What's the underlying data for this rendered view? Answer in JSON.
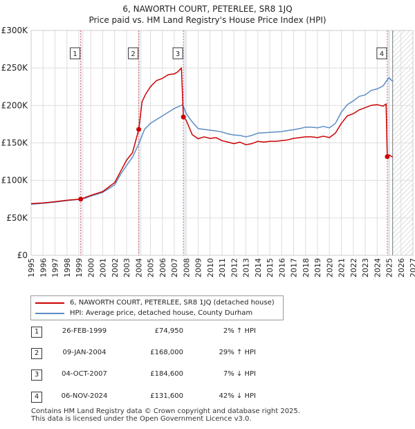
{
  "header": {
    "title": "6, NAWORTH COURT, PETERLEE, SR8 1JQ",
    "subtitle": "Price paid vs. HM Land Registry's House Price Index (HPI)"
  },
  "legend": {
    "property_label": "6, NAWORTH COURT, PETERLEE, SR8 1JQ (detached house)",
    "hpi_label": "HPI: Average price, detached house, County Durham"
  },
  "sales": [
    {
      "num": "1",
      "date": "26-FEB-1999",
      "price": "£74,950",
      "hpi": "2% ↑ HPI"
    },
    {
      "num": "2",
      "date": "09-JAN-2004",
      "price": "£168,000",
      "hpi": "29% ↑ HPI"
    },
    {
      "num": "3",
      "date": "04-OCT-2007",
      "price": "£184,600",
      "hpi": "7% ↓ HPI"
    },
    {
      "num": "4",
      "date": "06-NOV-2024",
      "price": "£131,600",
      "hpi": "42% ↓ HPI"
    }
  ],
  "footer": {
    "line1": "Contains HM Land Registry data © Crown copyright and database right 2025.",
    "line2": "This data is licensed under the Open Government Licence v3.0."
  },
  "colors": {
    "property": "#cc0000",
    "hpi": "#5b8cc4",
    "grid": "#dddddd",
    "sale_band": "#e8eef8"
  },
  "chart_data": {
    "type": "line",
    "title": "6, NAWORTH COURT, PETERLEE, SR8 1JQ",
    "subtitle": "Price paid vs. HM Land Registry's House Price Index (HPI)",
    "xlabel": "",
    "ylabel": "",
    "xlim": [
      1995,
      2027
    ],
    "ylim": [
      0,
      300000
    ],
    "grid": true,
    "legend_position": "bottom",
    "x_ticks": [
      "1995",
      "1996",
      "1997",
      "1998",
      "1999",
      "2000",
      "2001",
      "2002",
      "2003",
      "2004",
      "2005",
      "2006",
      "2007",
      "2008",
      "2009",
      "2010",
      "2011",
      "2012",
      "2013",
      "2014",
      "2015",
      "2016",
      "2017",
      "2018",
      "2019",
      "2020",
      "2021",
      "2022",
      "2023",
      "2024",
      "2025",
      "2026",
      "2027"
    ],
    "y_ticks": [
      {
        "value": 0,
        "label": "£0"
      },
      {
        "value": 50000,
        "label": "£50K"
      },
      {
        "value": 100000,
        "label": "£100K"
      },
      {
        "value": 150000,
        "label": "£150K"
      },
      {
        "value": 200000,
        "label": "£200K"
      },
      {
        "value": 250000,
        "label": "£250K"
      },
      {
        "value": 300000,
        "label": "£300K"
      }
    ],
    "data_end": 2025.3,
    "series": [
      {
        "name": "HPI: Average price, detached house, County Durham",
        "x": [
          1995,
          1996,
          1997,
          1998,
          1999,
          1999.5,
          2000,
          2001,
          2002,
          2002.5,
          2003,
          2003.5,
          2004,
          2004.5,
          2005,
          2005.5,
          2006,
          2006.5,
          2007,
          2007.3,
          2007.7,
          2008,
          2008.5,
          2009,
          2009.5,
          2010,
          2010.5,
          2011,
          2011.5,
          2012,
          2012.5,
          2013,
          2013.5,
          2014,
          2014.5,
          2015,
          2015.5,
          2016,
          2016.5,
          2017,
          2017.5,
          2018,
          2018.5,
          2019,
          2019.5,
          2020,
          2020.5,
          2021,
          2021.5,
          2022,
          2022.5,
          2023,
          2023.5,
          2024,
          2024.5,
          2024.8,
          2025,
          2025.3
        ],
        "values": [
          68000,
          69500,
          71000,
          73000,
          74500,
          76000,
          79000,
          84000,
          94000,
          108000,
          120000,
          131000,
          148000,
          168000,
          176000,
          181000,
          186000,
          191000,
          196000,
          198000,
          201000,
          189000,
          178000,
          169000,
          168000,
          167000,
          166000,
          164500,
          162000,
          160500,
          160000,
          158000,
          160000,
          163000,
          163500,
          164000,
          164500,
          165000,
          166500,
          167500,
          169000,
          171000,
          171000,
          170000,
          172000,
          170000,
          176000,
          191000,
          201000,
          206000,
          212000,
          214000,
          220000,
          222000,
          226000,
          233000,
          237000,
          232000
        ]
      },
      {
        "name": "6, NAWORTH COURT, PETERLEE, SR8 1JQ (detached house)",
        "x": [
          1995,
          1996,
          1997,
          1998,
          1999.15,
          1999.5,
          2000,
          2001,
          2002,
          2002.5,
          2003,
          2003.5,
          2004.02,
          2004.3,
          2004.6,
          2005,
          2005.5,
          2006,
          2006.5,
          2007,
          2007.3,
          2007.6,
          2007.76,
          2008,
          2008.5,
          2009,
          2009.5,
          2010,
          2010.5,
          2011,
          2011.5,
          2012,
          2012.5,
          2013,
          2013.5,
          2014,
          2014.5,
          2015,
          2015.5,
          2016,
          2016.5,
          2017,
          2017.5,
          2018,
          2018.5,
          2019,
          2019.5,
          2020,
          2020.5,
          2021,
          2021.5,
          2022,
          2022.5,
          2023,
          2023.5,
          2024,
          2024.5,
          2024.75,
          2024.85,
          2025,
          2025.3
        ],
        "values": [
          69000,
          70000,
          71500,
          73500,
          74950,
          77000,
          80000,
          85000,
          97000,
          112000,
          127000,
          137000,
          168000,
          205000,
          215000,
          225000,
          233000,
          236000,
          241000,
          242000,
          245000,
          250000,
          184600,
          180000,
          161000,
          155500,
          158000,
          156000,
          157000,
          153000,
          151000,
          149000,
          151000,
          147500,
          149000,
          152000,
          151000,
          152000,
          152000,
          153000,
          154000,
          156000,
          157000,
          158000,
          158000,
          157000,
          159000,
          157000,
          163000,
          176000,
          186000,
          189000,
          194000,
          197000,
          200000,
          201000,
          199000,
          202000,
          131600,
          134000,
          131000
        ]
      }
    ],
    "sales": [
      {
        "label": "1",
        "x": 1999.15,
        "value": 74950
      },
      {
        "label": "2",
        "x": 2004.02,
        "value": 168000
      },
      {
        "label": "3",
        "x": 2007.76,
        "value": 184600
      },
      {
        "label": "4",
        "x": 2024.85,
        "value": 131600
      }
    ]
  }
}
